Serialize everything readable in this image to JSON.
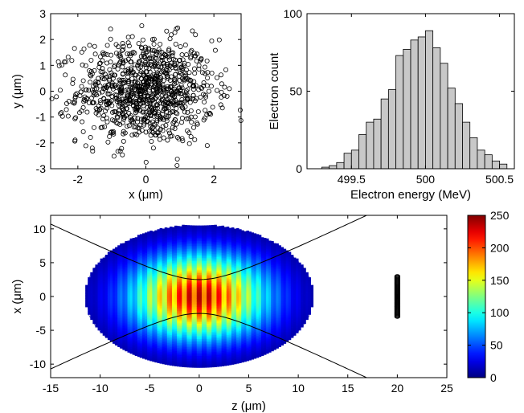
{
  "chart_data": [
    {
      "type": "scatter",
      "xlabel": "x (μm)",
      "ylabel": "y (μm)",
      "xlim": [
        -2.8,
        2.8
      ],
      "ylim": [
        -3,
        3
      ],
      "xticks": [
        -2,
        0,
        2
      ],
      "yticks": [
        -3,
        -2,
        -1,
        0,
        1,
        2,
        3
      ],
      "marker": "open-circle",
      "n_points": 1000,
      "distribution": "gaussian",
      "x_std": 1.0,
      "y_std": 1.0
    },
    {
      "type": "bar",
      "xlabel": "Electron energy (MeV)",
      "ylabel": "Electron count",
      "xlim": [
        499.2,
        500.6
      ],
      "ylim": [
        0,
        100
      ],
      "xticks": [
        499.5,
        500,
        500.5
      ],
      "yticks": [
        0,
        50,
        100
      ],
      "bar_color": "#c8c8c8",
      "bin_width": 0.05,
      "bin_centers": [
        499.325,
        499.375,
        499.425,
        499.475,
        499.525,
        499.575,
        499.625,
        499.675,
        499.725,
        499.775,
        499.825,
        499.875,
        499.925,
        499.975,
        500.025,
        500.075,
        500.125,
        500.175,
        500.225,
        500.275,
        500.325,
        500.375,
        500.425,
        500.475,
        500.525
      ],
      "values": [
        1,
        2,
        4,
        10,
        12,
        22,
        30,
        32,
        45,
        51,
        73,
        77,
        83,
        85,
        89,
        78,
        68,
        52,
        42,
        30,
        20,
        12,
        9,
        5,
        3
      ]
    },
    {
      "type": "heatmap",
      "xlabel": "z (μm)",
      "ylabel": "x (μm)",
      "xlim": [
        -15,
        25
      ],
      "ylim": [
        -12,
        12
      ],
      "xticks": [
        -15,
        -10,
        -5,
        0,
        5,
        10,
        15,
        20,
        25
      ],
      "yticks": [
        -10,
        -5,
        0,
        5,
        10
      ],
      "colorbar": {
        "min": 0,
        "max": 250,
        "ticks": [
          0,
          50,
          100,
          150,
          200,
          250
        ],
        "colormap": "jet"
      },
      "pulse": {
        "z_half_length": 11.5,
        "x_half_width": 10.5,
        "peak": 250
      },
      "waist_curves": {
        "w0": 2.5,
        "zR": 3.6
      },
      "electron_bunch": {
        "z": 20,
        "x_range": [
          -3,
          3
        ]
      }
    }
  ]
}
